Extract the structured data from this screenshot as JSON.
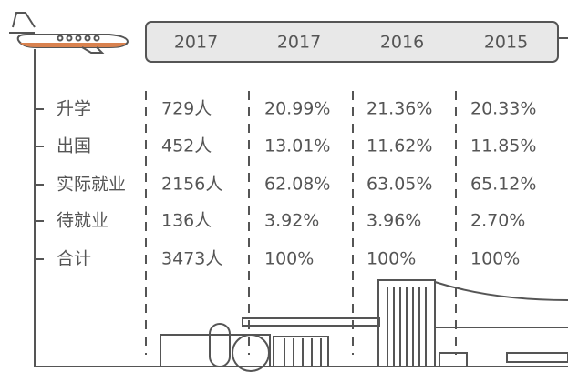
{
  "table": {
    "header": [
      "2017",
      "2017",
      "2016",
      "2015"
    ],
    "rows": [
      [
        "升学",
        "729人",
        "20.99%",
        "21.36%",
        "20.33%"
      ],
      [
        "出国",
        "452人",
        "13.01%",
        "11.62%",
        "11.85%"
      ],
      [
        "实际就业",
        "2156人",
        "62.08%",
        "63.05%",
        "65.12%"
      ],
      [
        "待就业",
        "136人",
        "3.92%",
        "3.96%",
        "2.70%"
      ],
      [
        "合计",
        "3473人",
        "100%",
        "100%",
        "100%"
      ]
    ]
  }
}
